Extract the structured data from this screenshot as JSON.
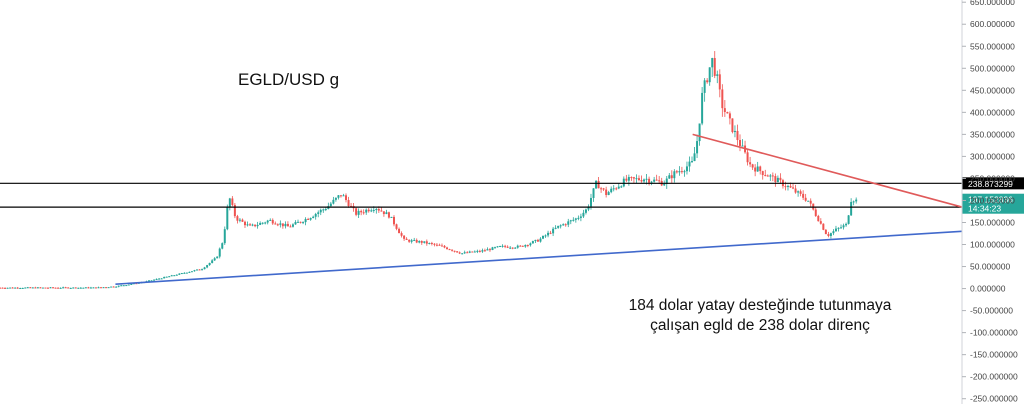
{
  "chart_data": {
    "type": "candlestick",
    "title": "EGLD/USD g",
    "ylim": [
      -262,
      655
    ],
    "y_ticks": [
      "650.000000",
      "600.000000",
      "550.000000",
      "500.000000",
      "450.000000",
      "400.000000",
      "350.000000",
      "300.000000",
      "250.000000",
      "200.000000",
      "150.000000",
      "100.000000",
      "50.000000",
      "0.000000",
      "-50.000000",
      "-100.000000",
      "-150.000000",
      "-200.000000",
      "-250.000000"
    ],
    "y_tick_values": [
      650,
      600,
      550,
      500,
      450,
      400,
      350,
      300,
      250,
      200,
      150,
      100,
      50,
      0,
      -50,
      -100,
      -150,
      -200,
      -250
    ],
    "price_series_approx": [
      [
        0,
        2
      ],
      [
        0.1,
        2
      ],
      [
        0.12,
        5
      ],
      [
        0.15,
        15
      ],
      [
        0.18,
        30
      ],
      [
        0.21,
        45
      ],
      [
        0.225,
        70
      ],
      [
        0.232,
        110
      ],
      [
        0.238,
        210
      ],
      [
        0.245,
        160
      ],
      [
        0.26,
        140
      ],
      [
        0.28,
        155
      ],
      [
        0.3,
        140
      ],
      [
        0.32,
        160
      ],
      [
        0.34,
        185
      ],
      [
        0.355,
        215
      ],
      [
        0.37,
        170
      ],
      [
        0.39,
        185
      ],
      [
        0.405,
        165
      ],
      [
        0.42,
        110
      ],
      [
        0.44,
        105
      ],
      [
        0.46,
        95
      ],
      [
        0.48,
        80
      ],
      [
        0.5,
        85
      ],
      [
        0.52,
        95
      ],
      [
        0.54,
        95
      ],
      [
        0.56,
        110
      ],
      [
        0.58,
        140
      ],
      [
        0.6,
        160
      ],
      [
        0.61,
        180
      ],
      [
        0.62,
        240
      ],
      [
        0.63,
        215
      ],
      [
        0.65,
        245
      ],
      [
        0.67,
        250
      ],
      [
        0.69,
        240
      ],
      [
        0.7,
        260
      ],
      [
        0.72,
        285
      ],
      [
        0.725,
        340
      ],
      [
        0.73,
        440
      ],
      [
        0.74,
        520
      ],
      [
        0.745,
        480
      ],
      [
        0.75,
        420
      ],
      [
        0.76,
        370
      ],
      [
        0.78,
        280
      ],
      [
        0.8,
        255
      ],
      [
        0.82,
        230
      ],
      [
        0.84,
        200
      ],
      [
        0.855,
        140
      ],
      [
        0.86,
        120
      ],
      [
        0.87,
        135
      ],
      [
        0.88,
        145
      ],
      [
        0.885,
        205
      ],
      [
        0.89,
        200
      ]
    ],
    "horizontal_levels": [
      {
        "value": 238.873299,
        "label": "238.873299",
        "color": "#000000"
      },
      {
        "value": 184.880563,
        "label": "184.880563",
        "color": "#000000"
      }
    ],
    "current_price": {
      "value": 197.152836,
      "label": "197.152836",
      "countdown": "14:34:23",
      "color": "#26a69a"
    },
    "trendlines": [
      {
        "name": "support",
        "color": "#4169cc",
        "points": [
          [
            0.12,
            10
          ],
          [
            1.0,
            130
          ]
        ]
      },
      {
        "name": "resistance",
        "color": "#e05a5a",
        "points": [
          [
            0.72,
            350
          ],
          [
            1.0,
            185
          ]
        ]
      }
    ],
    "annotation": [
      "184 dolar yatay desteğinde tutunmaya",
      "çalışan egld de 238 dolar direnç"
    ],
    "colors": {
      "up": "#26a69a",
      "down": "#ef5350",
      "axis_text": "#444444"
    }
  }
}
